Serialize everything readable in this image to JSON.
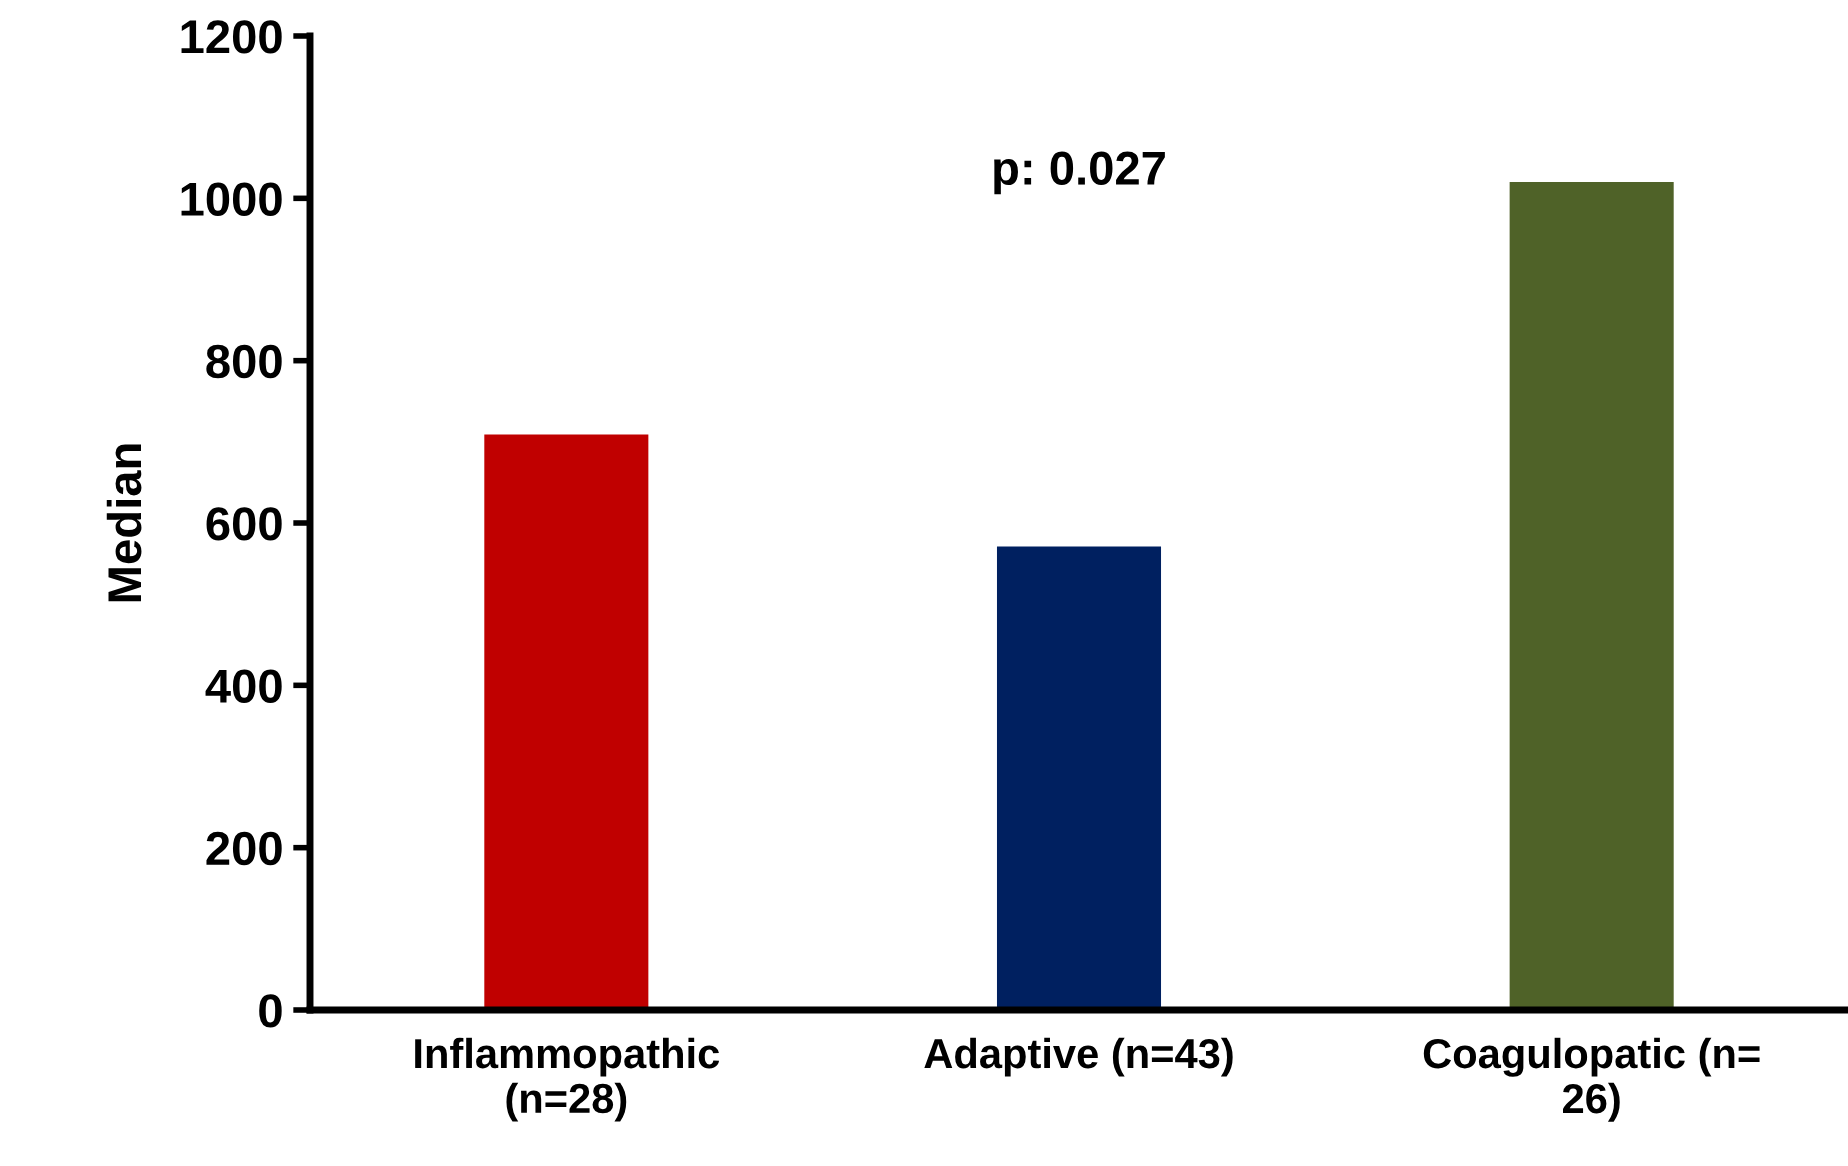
{
  "chart_data": {
    "type": "bar",
    "ylabel": "Median",
    "categories": [
      "Inflammopathic\n(n=28)",
      "Adaptive (n=43)",
      "Coagulopatic (n=\n26)"
    ],
    "values": [
      709,
      571,
      1020
    ],
    "colors": [
      "#c00000",
      "#002060",
      "#4f6228"
    ],
    "ylim": [
      0,
      1200
    ],
    "yticks": [
      0,
      200,
      400,
      600,
      800,
      1000,
      1200
    ],
    "grid": false,
    "annotations": [
      "p: 0.027"
    ]
  }
}
